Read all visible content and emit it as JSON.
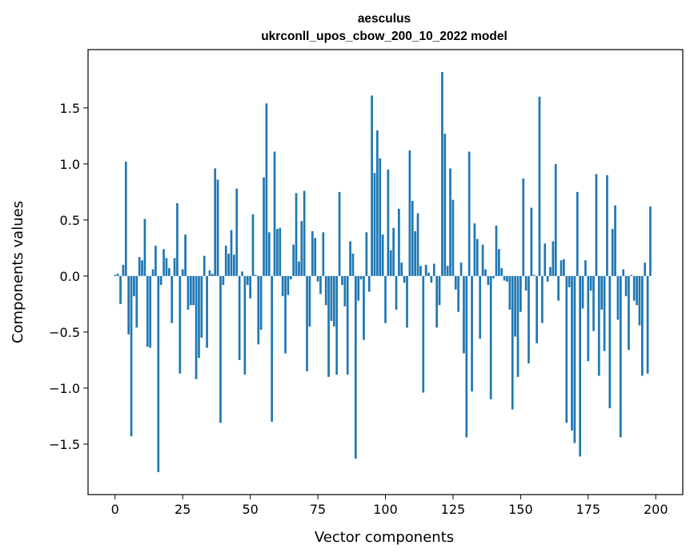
{
  "chart_data": {
    "type": "bar",
    "title": "aesculus",
    "subtitle": "ukrconll_upos_cbow_200_10_2022 model",
    "xlabel": "Vector components",
    "ylabel": "Components values",
    "xlim": [
      -10,
      210
    ],
    "ylim": [
      -1.95,
      2.02
    ],
    "xticks": [
      0,
      25,
      50,
      75,
      100,
      125,
      150,
      175,
      200
    ],
    "yticks": [
      -1.5,
      -1.0,
      -0.5,
      0.0,
      0.5,
      1.0,
      1.5
    ],
    "ytick_labels": [
      "−1.5",
      "−1.0",
      "−0.5",
      "0.0",
      "0.5",
      "1.0",
      "1.5"
    ],
    "bar_color": "#1f77b4",
    "grid": false,
    "legend": "none",
    "values": [
      0.01,
      0.02,
      -0.25,
      0.1,
      1.02,
      -0.52,
      -1.43,
      -0.18,
      -0.46,
      0.17,
      0.14,
      0.51,
      -0.63,
      -0.64,
      0.06,
      0.27,
      -1.75,
      -0.08,
      0.24,
      0.16,
      0.07,
      -0.42,
      0.16,
      0.65,
      -0.87,
      0.06,
      0.37,
      -0.3,
      -0.26,
      -0.26,
      -0.92,
      -0.73,
      -0.55,
      0.18,
      -0.64,
      0.05,
      0.02,
      0.96,
      0.86,
      -1.31,
      -0.08,
      0.27,
      0.2,
      0.41,
      0.19,
      0.78,
      -0.75,
      0.04,
      -0.88,
      -0.08,
      -0.2,
      0.55,
      0.01,
      -0.61,
      -0.48,
      0.88,
      1.54,
      0.39,
      -1.3,
      1.11,
      0.42,
      0.43,
      -0.18,
      -0.69,
      -0.17,
      -0.03,
      0.28,
      0.74,
      0.13,
      0.49,
      0.76,
      -0.85,
      -0.45,
      0.4,
      0.34,
      -0.05,
      -0.16,
      0.39,
      -0.26,
      -0.9,
      -0.4,
      -0.45,
      -0.88,
      0.75,
      -0.08,
      -0.27,
      -0.88,
      0.31,
      0.2,
      -1.63,
      -0.22,
      -0.03,
      -0.57,
      0.39,
      -0.14,
      1.61,
      0.92,
      1.3,
      1.05,
      0.37,
      -0.42,
      0.95,
      0.23,
      0.43,
      -0.3,
      0.6,
      0.12,
      -0.06,
      -0.46,
      1.12,
      0.67,
      0.4,
      0.56,
      0.09,
      -1.04,
      0.1,
      0.03,
      -0.06,
      0.11,
      -0.46,
      -0.26,
      1.82,
      1.27,
      0.09,
      0.96,
      0.68,
      -0.12,
      -0.32,
      0.12,
      -0.69,
      -1.44,
      1.11,
      -1.03,
      0.47,
      0.33,
      -0.56,
      0.28,
      0.06,
      -0.08,
      -1.1,
      -0.02,
      0.45,
      0.24,
      0.07,
      -0.04,
      -0.05,
      -0.3,
      -1.19,
      -0.54,
      -0.9,
      -0.32,
      0.87,
      -0.13,
      -0.78,
      0.61,
      0.01,
      -0.6,
      1.6,
      -0.42,
      0.29,
      -0.05,
      0.08,
      0.31,
      1.0,
      -0.22,
      0.14,
      0.15,
      -1.31,
      -0.1,
      -1.38,
      -1.49,
      0.75,
      -1.61,
      -0.29,
      0.14,
      -0.76,
      -0.13,
      -0.49,
      0.91,
      -0.89,
      -0.3,
      -0.67,
      0.9,
      -1.18,
      0.42,
      0.63,
      -0.39,
      -1.44,
      0.06,
      -0.18,
      -0.66,
      0.01,
      -0.22,
      -0.26,
      -0.44,
      -0.89,
      0.12,
      -0.87,
      0.62
    ]
  }
}
